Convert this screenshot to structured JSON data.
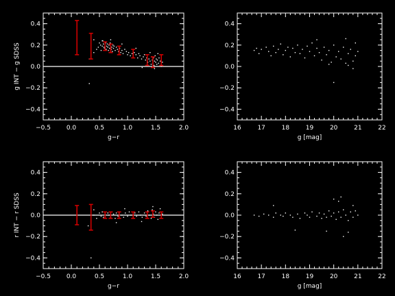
{
  "chart_data": [
    {
      "type": "scatter",
      "xlabel": "g−r",
      "ylabel": "g INT − g SDSS",
      "xlim": [
        -0.5,
        2.0
      ],
      "ylim": [
        -0.5,
        0.5
      ],
      "xticks": [
        "−0.5",
        "0.0",
        "0.5",
        "1.0",
        "1.5",
        "2.0"
      ],
      "yticks": [
        "−0.4",
        "−0.2",
        "0.0",
        "0.2",
        "0.4"
      ],
      "reference_line": 0.0,
      "errorbars": [
        {
          "x": 0.1,
          "y": 0.27,
          "yerr": 0.16
        },
        {
          "x": 0.35,
          "y": 0.19,
          "yerr": 0.12
        },
        {
          "x": 0.6,
          "y": 0.19,
          "yerr": 0.04
        },
        {
          "x": 0.7,
          "y": 0.17,
          "yerr": 0.04
        },
        {
          "x": 0.85,
          "y": 0.15,
          "yerr": 0.04
        },
        {
          "x": 1.1,
          "y": 0.12,
          "yerr": 0.04
        },
        {
          "x": 1.35,
          "y": 0.06,
          "yerr": 0.05
        },
        {
          "x": 1.45,
          "y": 0.04,
          "yerr": 0.05
        },
        {
          "x": 1.6,
          "y": 0.06,
          "yerr": 0.05
        }
      ],
      "points": [
        [
          0.32,
          -0.16
        ],
        [
          0.32,
          0.07
        ],
        [
          0.35,
          0.1
        ],
        [
          0.4,
          0.13
        ],
        [
          0.4,
          0.25
        ],
        [
          0.45,
          0.16
        ],
        [
          0.48,
          0.18
        ],
        [
          0.5,
          0.22
        ],
        [
          0.52,
          0.2
        ],
        [
          0.53,
          0.15
        ],
        [
          0.55,
          0.19
        ],
        [
          0.56,
          0.24
        ],
        [
          0.57,
          0.21
        ],
        [
          0.58,
          0.18
        ],
        [
          0.59,
          0.17
        ],
        [
          0.6,
          0.2
        ],
        [
          0.61,
          0.22
        ],
        [
          0.62,
          0.16
        ],
        [
          0.63,
          0.19
        ],
        [
          0.64,
          0.21
        ],
        [
          0.65,
          0.18
        ],
        [
          0.66,
          0.15
        ],
        [
          0.67,
          0.2
        ],
        [
          0.68,
          0.17
        ],
        [
          0.69,
          0.22
        ],
        [
          0.7,
          0.19
        ],
        [
          0.71,
          0.16
        ],
        [
          0.72,
          0.18
        ],
        [
          0.73,
          0.14
        ],
        [
          0.74,
          0.2
        ],
        [
          0.75,
          0.17
        ],
        [
          0.76,
          0.19
        ],
        [
          0.78,
          0.15
        ],
        [
          0.8,
          0.18
        ],
        [
          0.82,
          0.16
        ],
        [
          0.84,
          0.14
        ],
        [
          0.86,
          0.17
        ],
        [
          0.88,
          0.13
        ],
        [
          0.9,
          0.15
        ],
        [
          0.92,
          0.12
        ],
        [
          0.95,
          0.16
        ],
        [
          0.98,
          0.14
        ],
        [
          1.0,
          0.11
        ],
        [
          1.02,
          0.13
        ],
        [
          1.05,
          0.1
        ],
        [
          1.08,
          0.12
        ],
        [
          1.1,
          0.09
        ],
        [
          1.12,
          0.13
        ],
        [
          1.15,
          0.11
        ],
        [
          1.18,
          0.08
        ],
        [
          1.2,
          0.12
        ],
        [
          1.22,
          0.1
        ],
        [
          1.25,
          0.07
        ],
        [
          1.28,
          0.09
        ],
        [
          1.3,
          0.11
        ],
        [
          1.32,
          0.06
        ],
        [
          1.34,
          0.08
        ],
        [
          1.36,
          0.04
        ],
        [
          1.38,
          0.07
        ],
        [
          1.4,
          0.05
        ],
        [
          1.42,
          0.02
        ],
        [
          1.43,
          0.09
        ],
        [
          1.44,
          0.06
        ],
        [
          1.45,
          0.03
        ],
        [
          1.46,
          0.08
        ],
        [
          1.47,
          0.01
        ],
        [
          1.48,
          0.05
        ],
        [
          1.49,
          0.1
        ],
        [
          1.5,
          0.04
        ],
        [
          1.51,
          0.07
        ],
        [
          1.52,
          0.02
        ],
        [
          1.53,
          0.06
        ],
        [
          1.54,
          0.12
        ],
        [
          1.55,
          0.03
        ],
        [
          1.56,
          0.08
        ],
        [
          1.58,
          0.05
        ],
        [
          1.6,
          0.0
        ],
        [
          1.62,
          0.04
        ],
        [
          0.9,
          0.21
        ],
        [
          1.15,
          0.17
        ],
        [
          1.4,
          0.13
        ],
        [
          1.26,
          -0.01
        ],
        [
          1.48,
          -0.02
        ],
        [
          0.55,
          0.24
        ],
        [
          0.7,
          0.25
        ]
      ]
    },
    {
      "type": "scatter",
      "xlabel": "g [mag]",
      "ylabel": "",
      "xlim": [
        16,
        22
      ],
      "ylim": [
        -0.5,
        0.5
      ],
      "xticks": [
        "16",
        "17",
        "18",
        "19",
        "20",
        "21",
        "22"
      ],
      "yticks": [
        "−0.4",
        "−0.2",
        "0.0",
        "0.2",
        "0.4"
      ],
      "points": [
        [
          16.7,
          0.15
        ],
        [
          16.8,
          0.17
        ],
        [
          16.9,
          0.12
        ],
        [
          17.0,
          0.16
        ],
        [
          17.2,
          0.18
        ],
        [
          17.3,
          0.14
        ],
        [
          17.4,
          0.1
        ],
        [
          17.5,
          0.19
        ],
        [
          17.6,
          0.13
        ],
        [
          17.7,
          0.16
        ],
        [
          17.8,
          0.21
        ],
        [
          17.9,
          0.11
        ],
        [
          18.0,
          0.15
        ],
        [
          18.1,
          0.18
        ],
        [
          18.2,
          0.09
        ],
        [
          18.3,
          0.17
        ],
        [
          18.4,
          0.13
        ],
        [
          18.5,
          0.2
        ],
        [
          18.6,
          0.12
        ],
        [
          18.7,
          0.16
        ],
        [
          18.8,
          0.08
        ],
        [
          18.9,
          0.19
        ],
        [
          19.0,
          0.14
        ],
        [
          19.1,
          0.22
        ],
        [
          19.2,
          0.1
        ],
        [
          19.3,
          0.17
        ],
        [
          19.4,
          0.13
        ],
        [
          19.5,
          0.06
        ],
        [
          19.6,
          0.18
        ],
        [
          19.7,
          0.11
        ],
        [
          19.8,
          0.15
        ],
        [
          19.9,
          0.04
        ],
        [
          20.0,
          0.2
        ],
        [
          20.1,
          0.09
        ],
        [
          20.2,
          0.14
        ],
        [
          20.3,
          0.07
        ],
        [
          20.4,
          0.18
        ],
        [
          20.5,
          0.03
        ],
        [
          20.6,
          0.12
        ],
        [
          20.7,
          0.16
        ],
        [
          20.8,
          0.05
        ],
        [
          20.9,
          0.1
        ],
        [
          21.0,
          0.14
        ],
        [
          19.3,
          0.25
        ],
        [
          20.5,
          0.26
        ],
        [
          20.0,
          -0.15
        ],
        [
          20.8,
          -0.02
        ],
        [
          20.9,
          0.22
        ],
        [
          19.8,
          0.02
        ],
        [
          20.6,
          0.01
        ]
      ]
    },
    {
      "type": "scatter",
      "xlabel": "g−r",
      "ylabel": "r INT − r SDSS",
      "xlim": [
        -0.5,
        2.0
      ],
      "ylim": [
        -0.5,
        0.5
      ],
      "xticks": [
        "−0.5",
        "0.0",
        "0.5",
        "1.0",
        "1.5",
        "2.0"
      ],
      "yticks": [
        "−0.4",
        "−0.2",
        "0.0",
        "0.2",
        "0.4"
      ],
      "reference_line": 0.0,
      "errorbars": [
        {
          "x": 0.1,
          "y": 0.0,
          "yerr": 0.09
        },
        {
          "x": 0.35,
          "y": -0.02,
          "yerr": 0.12
        },
        {
          "x": 0.6,
          "y": 0.0,
          "yerr": 0.03
        },
        {
          "x": 0.7,
          "y": 0.0,
          "yerr": 0.03
        },
        {
          "x": 0.85,
          "y": 0.0,
          "yerr": 0.03
        },
        {
          "x": 1.1,
          "y": 0.0,
          "yerr": 0.03
        },
        {
          "x": 1.35,
          "y": 0.0,
          "yerr": 0.03
        },
        {
          "x": 1.45,
          "y": 0.01,
          "yerr": 0.03
        },
        {
          "x": 1.6,
          "y": 0.0,
          "yerr": 0.03
        }
      ],
      "points": [
        [
          0.3,
          -0.1
        ],
        [
          0.35,
          -0.4
        ],
        [
          0.4,
          0.05
        ],
        [
          0.45,
          -0.03
        ],
        [
          0.5,
          0.02
        ],
        [
          0.53,
          -0.01
        ],
        [
          0.55,
          0.03
        ],
        [
          0.57,
          -0.02
        ],
        [
          0.6,
          0.01
        ],
        [
          0.62,
          -0.03
        ],
        [
          0.65,
          0.02
        ],
        [
          0.67,
          0.0
        ],
        [
          0.7,
          -0.02
        ],
        [
          0.72,
          0.03
        ],
        [
          0.75,
          0.01
        ],
        [
          0.78,
          -0.03
        ],
        [
          0.8,
          0.02
        ],
        [
          0.83,
          -0.01
        ],
        [
          0.86,
          0.03
        ],
        [
          0.9,
          0.0
        ],
        [
          0.93,
          -0.02
        ],
        [
          0.96,
          0.02
        ],
        [
          1.0,
          -0.01
        ],
        [
          1.03,
          0.03
        ],
        [
          1.06,
          0.0
        ],
        [
          1.1,
          -0.03
        ],
        [
          1.13,
          0.02
        ],
        [
          1.16,
          -0.01
        ],
        [
          1.2,
          0.03
        ],
        [
          1.23,
          0.0
        ],
        [
          1.26,
          -0.02
        ],
        [
          1.3,
          0.02
        ],
        [
          1.33,
          -0.01
        ],
        [
          1.36,
          0.04
        ],
        [
          1.39,
          0.0
        ],
        [
          1.42,
          -0.03
        ],
        [
          1.44,
          0.05
        ],
        [
          1.46,
          0.01
        ],
        [
          1.48,
          -0.02
        ],
        [
          1.5,
          0.03
        ],
        [
          1.52,
          0.0
        ],
        [
          1.54,
          -0.04
        ],
        [
          1.56,
          0.02
        ],
        [
          1.58,
          0.06
        ],
        [
          1.6,
          -0.01
        ],
        [
          1.62,
          0.01
        ],
        [
          0.95,
          0.06
        ],
        [
          1.25,
          -0.06
        ],
        [
          1.45,
          0.08
        ],
        [
          0.8,
          -0.07
        ],
        [
          0.4,
          0.0
        ]
      ]
    },
    {
      "type": "scatter",
      "xlabel": "g [mag]",
      "ylabel": "",
      "xlim": [
        16,
        22
      ],
      "ylim": [
        -0.5,
        0.5
      ],
      "xticks": [
        "16",
        "17",
        "18",
        "19",
        "20",
        "21",
        "22"
      ],
      "yticks": [
        "−0.4",
        "−0.2",
        "0.0",
        "0.2",
        "0.4"
      ],
      "points": [
        [
          16.7,
          0.0
        ],
        [
          16.9,
          -0.01
        ],
        [
          17.1,
          0.01
        ],
        [
          17.3,
          0.0
        ],
        [
          17.5,
          -0.02
        ],
        [
          17.6,
          0.02
        ],
        [
          17.8,
          0.0
        ],
        [
          17.9,
          -0.01
        ],
        [
          18.0,
          0.02
        ],
        [
          18.2,
          0.0
        ],
        [
          18.3,
          -0.02
        ],
        [
          18.5,
          0.01
        ],
        [
          18.6,
          -0.03
        ],
        [
          18.8,
          0.02
        ],
        [
          18.9,
          0.0
        ],
        [
          19.0,
          -0.02
        ],
        [
          19.1,
          0.03
        ],
        [
          19.3,
          -0.01
        ],
        [
          19.4,
          0.02
        ],
        [
          19.5,
          -0.03
        ],
        [
          19.6,
          0.01
        ],
        [
          19.7,
          -0.02
        ],
        [
          19.8,
          0.04
        ],
        [
          19.9,
          -0.01
        ],
        [
          20.0,
          0.02
        ],
        [
          20.1,
          -0.04
        ],
        [
          20.2,
          0.03
        ],
        [
          20.3,
          -0.02
        ],
        [
          20.4,
          0.05
        ],
        [
          20.5,
          0.0
        ],
        [
          20.6,
          -0.05
        ],
        [
          20.7,
          0.03
        ],
        [
          20.8,
          -0.02
        ],
        [
          20.9,
          0.04
        ],
        [
          21.0,
          0.0
        ],
        [
          20.2,
          0.13
        ],
        [
          20.4,
          -0.2
        ],
        [
          20.6,
          -0.16
        ],
        [
          20.3,
          0.17
        ],
        [
          19.7,
          -0.15
        ],
        [
          18.4,
          -0.14
        ],
        [
          17.5,
          0.09
        ],
        [
          20.8,
          0.09
        ],
        [
          20.0,
          0.15
        ]
      ]
    }
  ]
}
